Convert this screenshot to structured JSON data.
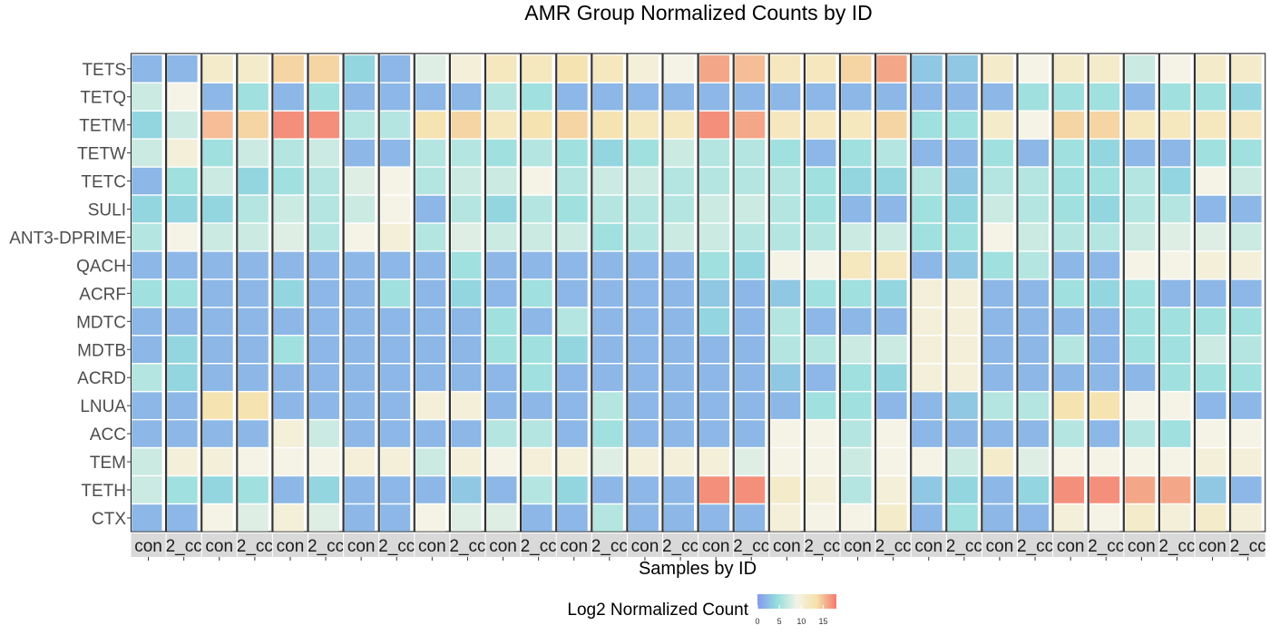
{
  "chart_data": {
    "type": "heatmap",
    "title": "AMR Group Normalized Counts by ID",
    "xlabel": "Samples by ID",
    "ylabel": "",
    "rows": [
      "TETS",
      "TETQ",
      "TETM",
      "TETW",
      "TETC",
      "SULI",
      "ANT3-DPRIME",
      "QACH",
      "ACRF",
      "MDTC",
      "MDTB",
      "ACRD",
      "LNUA",
      "ACC",
      "TEM",
      "TETH",
      "CTX"
    ],
    "facet_labels": [
      "con",
      "2_cc",
      "con",
      "2_cc",
      "con",
      "2_cc",
      "con",
      "2_cc",
      "con",
      "2_cc",
      "con",
      "2_cc",
      "con",
      "2_cc",
      "con",
      "2_cc",
      "con",
      "2_cc",
      "con",
      "2_cc",
      "con",
      "2_cc",
      "con",
      "2_cc",
      "con",
      "2_cc",
      "con",
      "2_cc",
      "con",
      "2_cc",
      "con",
      "2_cc"
    ],
    "values": [
      [
        2,
        2,
        11,
        11,
        14,
        14,
        4,
        2,
        8,
        10,
        12,
        12,
        13,
        12,
        10,
        9,
        16,
        15,
        12,
        12,
        14,
        16,
        3,
        3,
        11,
        9,
        11,
        11,
        7,
        9,
        11,
        11
      ],
      [
        7,
        9,
        2,
        5,
        2,
        5,
        2,
        2,
        2,
        2,
        6,
        5,
        2,
        2,
        2,
        2,
        2,
        2,
        2,
        2,
        2,
        2,
        2,
        2,
        2,
        5,
        5,
        5,
        2,
        5,
        5,
        4
      ],
      [
        4,
        7,
        15,
        14,
        17,
        17,
        6,
        6,
        13,
        14,
        12,
        13,
        14,
        13,
        12,
        12,
        17,
        16,
        12,
        12,
        12,
        14,
        5,
        5,
        11,
        9,
        14,
        14,
        12,
        12,
        12,
        12
      ],
      [
        7,
        10,
        5,
        7,
        6,
        7,
        2,
        2,
        6,
        6,
        5,
        6,
        5,
        4,
        5,
        7,
        6,
        6,
        5,
        2,
        5,
        6,
        2,
        2,
        5,
        2,
        5,
        4,
        2,
        2,
        5,
        5
      ],
      [
        2,
        5,
        7,
        4,
        5,
        6,
        8,
        9,
        6,
        7,
        7,
        9,
        6,
        7,
        7,
        6,
        6,
        6,
        6,
        5,
        4,
        4,
        6,
        3,
        6,
        6,
        5,
        5,
        6,
        4,
        9,
        7
      ],
      [
        4,
        4,
        4,
        6,
        7,
        6,
        7,
        9,
        2,
        6,
        4,
        6,
        5,
        6,
        6,
        6,
        7,
        7,
        6,
        5,
        2,
        2,
        5,
        4,
        7,
        6,
        5,
        4,
        6,
        6,
        2,
        2
      ],
      [
        6,
        9,
        7,
        7,
        8,
        6,
        9,
        10,
        6,
        8,
        7,
        7,
        7,
        5,
        6,
        7,
        7,
        6,
        6,
        6,
        7,
        7,
        5,
        5,
        9,
        7,
        6,
        6,
        7,
        8,
        8,
        7
      ],
      [
        2,
        2,
        2,
        2,
        2,
        2,
        2,
        2,
        2,
        5,
        2,
        2,
        2,
        2,
        2,
        2,
        5,
        4,
        9,
        9,
        12,
        12,
        2,
        3,
        5,
        6,
        2,
        2,
        9,
        9,
        10,
        10
      ],
      [
        5,
        5,
        2,
        2,
        4,
        2,
        2,
        5,
        2,
        4,
        2,
        5,
        2,
        2,
        2,
        2,
        3,
        2,
        3,
        5,
        5,
        4,
        10,
        10,
        2,
        2,
        5,
        4,
        5,
        2,
        2,
        2
      ],
      [
        2,
        2,
        2,
        2,
        2,
        2,
        2,
        2,
        2,
        2,
        5,
        2,
        6,
        2,
        2,
        2,
        4,
        2,
        6,
        2,
        2,
        2,
        10,
        10,
        2,
        2,
        2,
        2,
        5,
        5,
        5,
        5
      ],
      [
        2,
        4,
        2,
        2,
        5,
        2,
        2,
        2,
        2,
        2,
        5,
        5,
        4,
        2,
        2,
        2,
        2,
        2,
        6,
        6,
        7,
        7,
        10,
        10,
        2,
        2,
        6,
        2,
        5,
        5,
        7,
        6
      ],
      [
        6,
        4,
        2,
        2,
        2,
        2,
        2,
        2,
        2,
        2,
        2,
        5,
        2,
        2,
        2,
        2,
        2,
        2,
        3,
        2,
        5,
        4,
        10,
        10,
        2,
        2,
        2,
        2,
        2,
        5,
        5,
        5
      ],
      [
        2,
        2,
        13,
        13,
        2,
        2,
        2,
        2,
        10,
        10,
        2,
        2,
        2,
        6,
        2,
        2,
        2,
        2,
        2,
        5,
        5,
        2,
        2,
        3,
        6,
        6,
        13,
        13,
        9,
        9,
        2,
        2
      ],
      [
        2,
        2,
        2,
        2,
        10,
        7,
        2,
        2,
        2,
        2,
        6,
        6,
        2,
        5,
        2,
        2,
        2,
        2,
        9,
        9,
        6,
        9,
        2,
        2,
        2,
        2,
        6,
        2,
        6,
        5,
        9,
        9
      ],
      [
        7,
        10,
        10,
        9,
        9,
        9,
        10,
        10,
        7,
        10,
        9,
        10,
        10,
        8,
        10,
        10,
        10,
        8,
        9,
        9,
        7,
        9,
        9,
        7,
        11,
        8,
        9,
        9,
        9,
        9,
        10,
        10
      ],
      [
        7,
        5,
        4,
        5,
        2,
        4,
        2,
        2,
        2,
        3,
        2,
        6,
        4,
        2,
        2,
        2,
        17,
        17,
        11,
        10,
        6,
        10,
        3,
        4,
        2,
        4,
        17,
        17,
        16,
        16,
        3,
        2
      ],
      [
        2,
        2,
        9,
        8,
        10,
        8,
        2,
        2,
        9,
        8,
        8,
        2,
        2,
        6,
        2,
        2,
        2,
        2,
        10,
        9,
        9,
        11,
        2,
        5,
        2,
        2,
        10,
        9,
        11,
        10,
        11,
        10
      ]
    ],
    "colorbar": {
      "label": "Log2 Normalized Count",
      "ticks": [
        "0",
        "5",
        "10",
        "15"
      ],
      "domain": [
        0,
        18
      ],
      "colors": [
        "#8598ee",
        "#95dedd",
        "#f4f3e6",
        "#f5e1aa",
        "#f4786d"
      ]
    },
    "legend_position": "bottom",
    "grid": false
  }
}
